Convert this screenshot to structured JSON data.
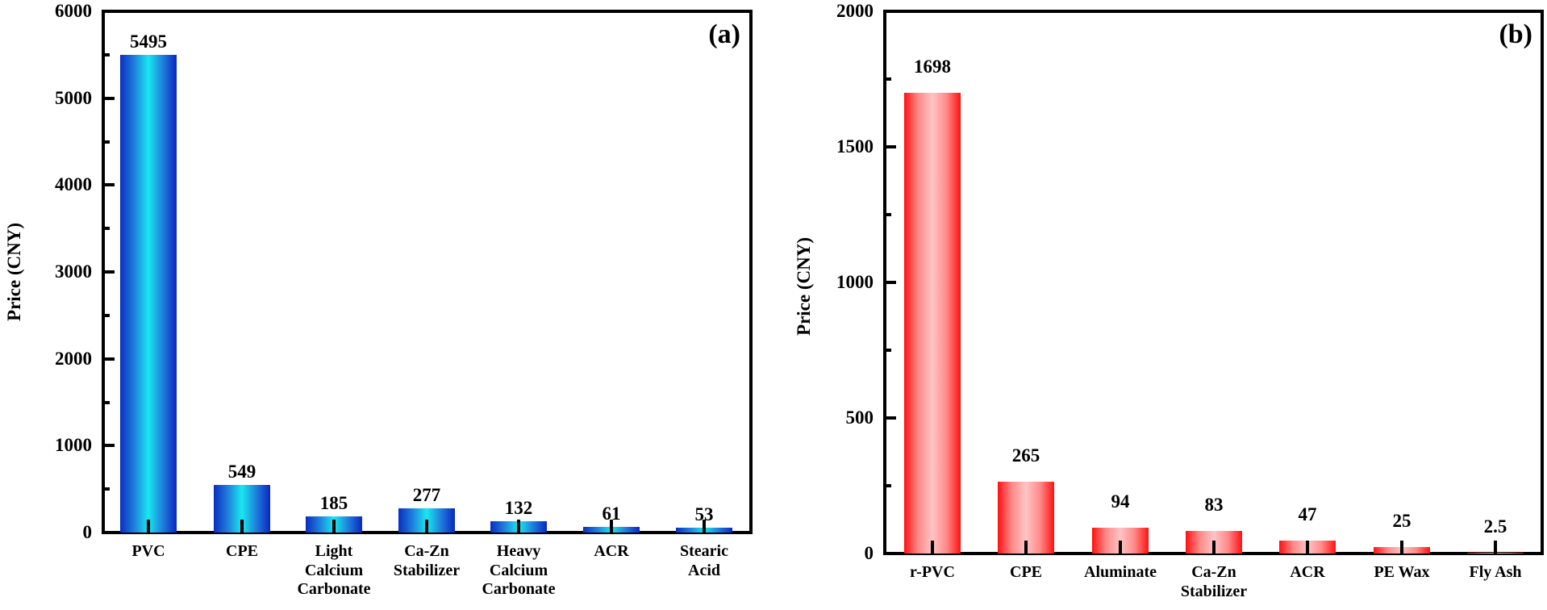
{
  "chart_data": [
    {
      "type": "bar",
      "panel": "(a)",
      "title": "",
      "xlabel": "",
      "ylabel": "Price (CNY)",
      "ylim": [
        0,
        6000
      ],
      "yticks": [
        "0",
        "1000",
        "2000",
        "3000",
        "4000",
        "5000",
        "6000"
      ],
      "categories": [
        "PVC",
        "CPE",
        "Light\nCalcium\nCarbonate",
        "Ca-Zn\nStabilizer",
        "Heavy\nCalcium\nCarbonate",
        "ACR",
        "Stearic\nAcid"
      ],
      "values": [
        5495,
        549,
        185,
        277,
        132,
        61,
        53
      ],
      "value_labels": [
        "5495",
        "549",
        "185",
        "277",
        "132",
        "61",
        "53"
      ],
      "bar_color": {
        "edge": "#0a2ec0",
        "center": "#19e8ef"
      },
      "grid": false,
      "legend": null
    },
    {
      "type": "bar",
      "panel": "(b)",
      "title": "",
      "xlabel": "",
      "ylabel": "Price (CNY)",
      "ylim": [
        0,
        2000
      ],
      "yticks": [
        "0",
        "500",
        "1000",
        "1500",
        "2000"
      ],
      "categories": [
        "r-PVC",
        "CPE",
        "Aluminate",
        "Ca-Zn\nStabilizer",
        "ACR",
        "PE Wax",
        "Fly Ash"
      ],
      "values": [
        1698,
        265,
        94,
        83,
        47,
        25,
        2.5
      ],
      "value_labels": [
        "1698",
        "265",
        "94",
        "83",
        "47",
        "25",
        "2.5"
      ],
      "bar_color": {
        "edge": "#ff1111",
        "center": "#ffc4c4"
      },
      "grid": false,
      "legend": null
    }
  ]
}
